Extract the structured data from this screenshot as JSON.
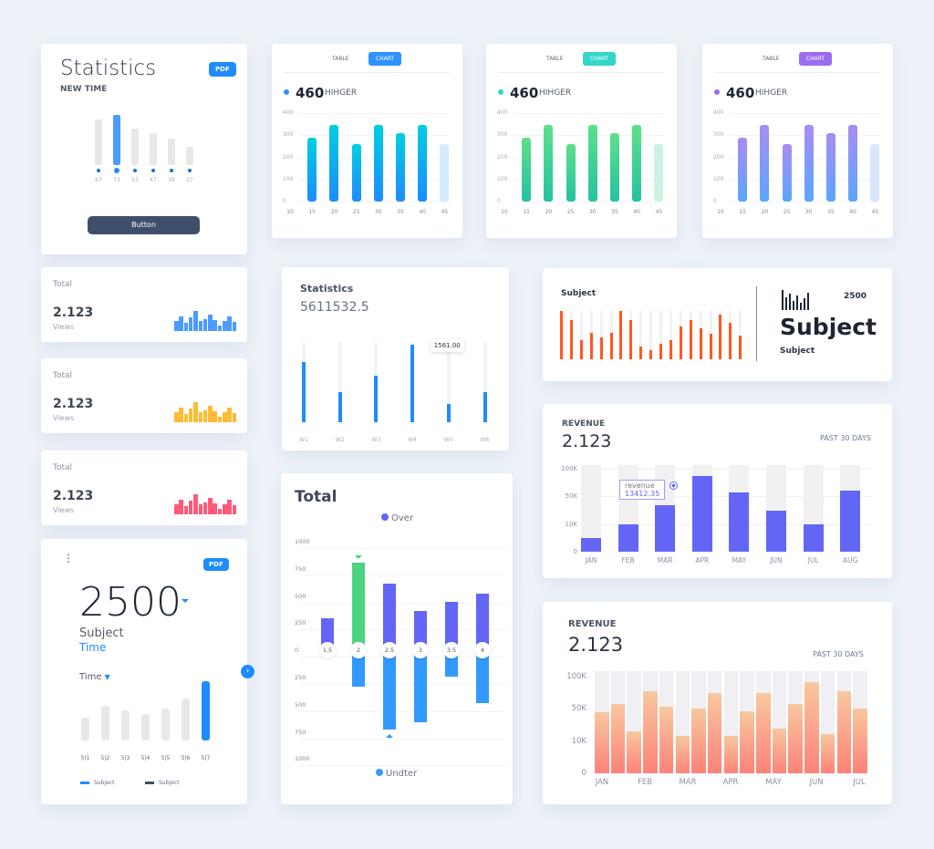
{
  "stats_card": {
    "title": "Statistics",
    "subtitle": "NEW TIME",
    "pdf": "PDF",
    "button": "Button",
    "labels": [
      "67",
      "73",
      "53",
      "47",
      "39",
      "27"
    ],
    "values": [
      67,
      73,
      53,
      47,
      39,
      27
    ],
    "active": 1
  },
  "chart_cards": [
    {
      "tab_table": "TABLE",
      "tab_chart": "CHART",
      "value": "460",
      "label": "HIHGER",
      "accent": "#2e93ff",
      "grad": [
        "#00cfe0",
        "#1e8cff"
      ],
      "light": "#d4ecff"
    },
    {
      "tab_table": "TABLE",
      "tab_chart": "CHART",
      "value": "460",
      "label": "HIHGER",
      "accent": "#33d6c9",
      "grad": [
        "#5ee08a",
        "#25c2a0"
      ],
      "light": "#cdf3e0"
    },
    {
      "tab_table": "TABLE",
      "tab_chart": "CHART",
      "value": "460",
      "label": "HIHGER",
      "accent": "#9b6cf0",
      "grad": [
        "#a98cf2",
        "#5aa6ff"
      ],
      "light": "#d9e6ff"
    }
  ],
  "chart_common": {
    "yticks": [
      "400",
      "300",
      "200",
      "100",
      "0"
    ],
    "xticks": [
      "10",
      "15",
      "20",
      "25",
      "30",
      "35",
      "40",
      "45"
    ],
    "values": [
      null,
      290,
      345,
      260,
      345,
      310,
      345,
      260
    ]
  },
  "total_cards": [
    {
      "label": "Total",
      "value": "2.123",
      "unit": "Views",
      "color": "#4a9cff"
    },
    {
      "label": "Total",
      "value": "2.123",
      "unit": "Views",
      "color": "#ffbb33"
    },
    {
      "label": "Total",
      "value": "2.123",
      "unit": "Views",
      "color": "#ff5a7a"
    }
  ],
  "spark_values": [
    12,
    18,
    10,
    17,
    25,
    12,
    15,
    20,
    14,
    7,
    12,
    18,
    11
  ],
  "big_card": {
    "value": "2500",
    "subject": "Subject",
    "time": "Time",
    "pdf": "PDF",
    "dropdown": "Time",
    "xlabels": [
      "5|1",
      "5|2",
      "5|3",
      "5|4",
      "5|5",
      "5|6",
      "5|7"
    ],
    "values": [
      25,
      38,
      33,
      29,
      35,
      46,
      65
    ],
    "active": 6,
    "legend": [
      "Subject",
      "Subject"
    ]
  },
  "weekly": {
    "title": "Statistics",
    "value": "5611532.5",
    "labels": [
      "W1",
      "W2",
      "W3",
      "W4",
      "W5",
      "W6"
    ],
    "fractions": [
      0.75,
      0.37,
      0.58,
      0.97,
      0.23,
      0.37
    ],
    "tooltip": "1561.00",
    "tooltip_index": 4
  },
  "total_chart": {
    "title": "Total",
    "legend_over": "Over",
    "legend_under": "Undter",
    "yticks": [
      "1000",
      "750",
      "500",
      "250",
      "0",
      "250",
      "500",
      "750",
      "1000"
    ],
    "categories": [
      "1.5",
      "2",
      "2.5",
      "3",
      "3.5",
      "4"
    ],
    "over": [
      340,
      920,
      700,
      410,
      510,
      600
    ],
    "under": [
      0,
      380,
      840,
      760,
      280,
      560
    ],
    "highlight_over": 1,
    "colors": {
      "over": "#6366f5",
      "under": "#3399ff",
      "highlight": "#4cd480"
    }
  },
  "subject_card": {
    "label": "Subject",
    "number": "2500",
    "big": "Subject",
    "small": "Subject",
    "fractions": [
      1,
      0.82,
      0.4,
      0.55,
      0.45,
      0.55,
      1,
      0.82,
      0.27,
      0.18,
      0.33,
      0.4,
      0.68,
      0.82,
      0.64,
      0.52,
      0.92,
      0.75,
      0.5
    ],
    "color": "#ff5722"
  },
  "revenue1": {
    "title": "REVENUE",
    "value": "2.123",
    "period": "PAST 30 DAYS",
    "yticks": [
      "100K",
      "50K",
      "10K",
      "0"
    ],
    "months": [
      "JAN",
      "FEB",
      "MAR",
      "APR",
      "MAY",
      "JUN",
      "JUL",
      "AUG"
    ],
    "values": [
      5000,
      10000,
      37000,
      87000,
      57000,
      30000,
      10000,
      60000
    ],
    "tooltip_label": "revenue",
    "tooltip_value": "13412.35",
    "color": "#6366f5"
  },
  "revenue2": {
    "title": "REVENUE",
    "value": "2.123",
    "period": "PAST 30 DAYS",
    "yticks": [
      "100K",
      "50K",
      "10K",
      "0"
    ],
    "months": [
      "JAN",
      "FEB",
      "MAR",
      "APR",
      "MAY",
      "JUN",
      "JUL"
    ],
    "values": [
      46000,
      58000,
      22000,
      77000,
      53000,
      17000,
      50000,
      75000,
      16000,
      47000,
      75000,
      26000,
      58000,
      91000,
      19000,
      77000,
      50000
    ]
  }
}
